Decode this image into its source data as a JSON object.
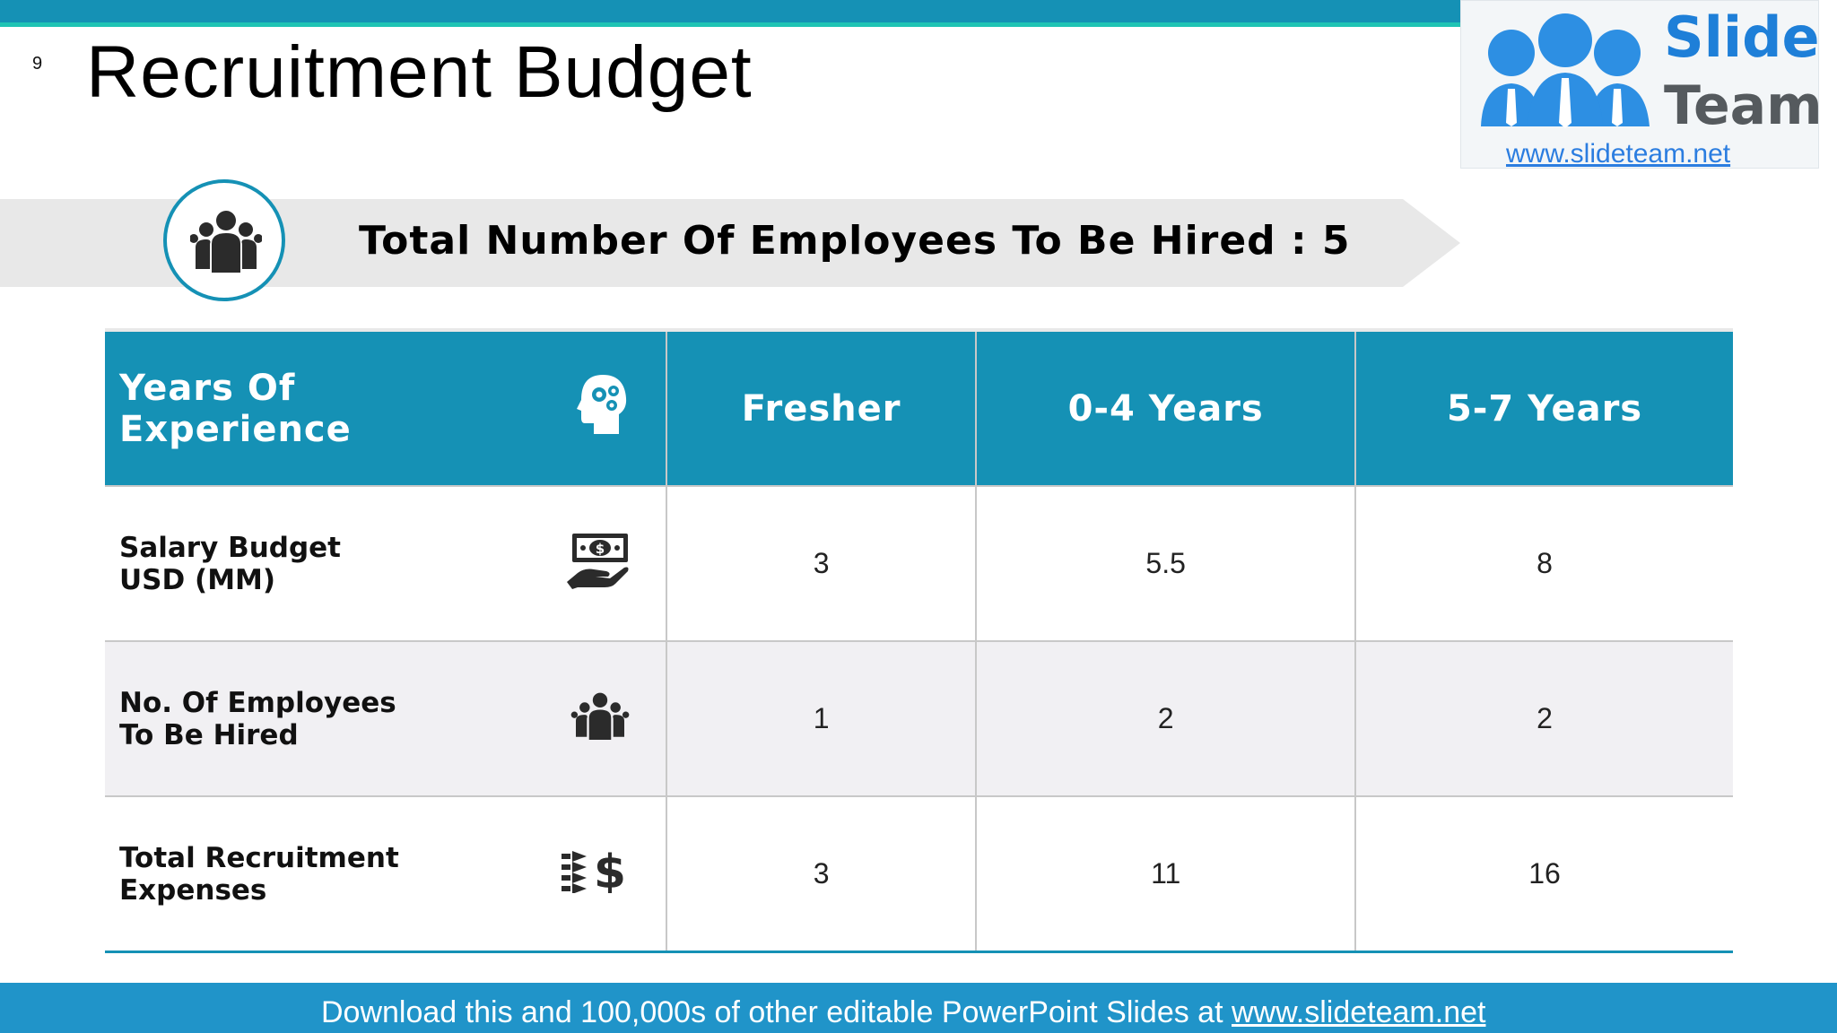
{
  "slide": {
    "number": "9",
    "title": "Recruitment Budget"
  },
  "logo": {
    "word1": "Slide",
    "word2": "Team",
    "url": "www.slideteam.net"
  },
  "banner": {
    "text": "Total Number Of Employees To Be Hired : 5",
    "icon": "people-group-icon"
  },
  "table": {
    "header": {
      "label_line1": "Years Of",
      "label_line2": "Experience",
      "icon": "head-gears-icon",
      "columns": [
        "Fresher",
        "0-4 Years",
        "5-7 Years"
      ]
    },
    "rows": [
      {
        "label_line1": "Salary Budget",
        "label_line2": "USD (MM)",
        "icon": "cash-hand-icon",
        "values": [
          "3",
          "5.5",
          "8"
        ]
      },
      {
        "label_line1": "No. Of Employees",
        "label_line2": "To Be Hired",
        "icon": "people-group-icon",
        "values": [
          "1",
          "2",
          "2"
        ]
      },
      {
        "label_line1": "Total Recruitment",
        "label_line2": "Expenses",
        "icon": "expenses-dollar-icon",
        "values": [
          "3",
          "11",
          "16"
        ]
      }
    ]
  },
  "footer": {
    "text": "Download this and 100,000s of other editable PowerPoint Slides at ",
    "link": "www.slideteam.net"
  },
  "colors": {
    "accent": "#1591b5",
    "teal_stripe": "#1fc4b4",
    "banner_gray": "#e8e8e8",
    "row_alt": "#f1f0f3",
    "footer": "#2094c9"
  }
}
